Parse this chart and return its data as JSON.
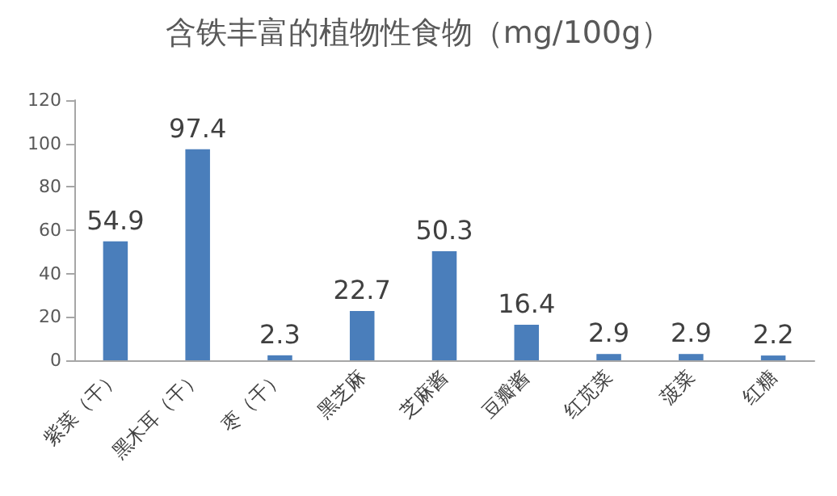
{
  "chart_data": {
    "type": "bar",
    "title": "含铁丰富的植物性食物（mg/100g）",
    "categories": [
      "紫菜（干）",
      "黑木耳（干）",
      "枣（干）",
      "黑芝麻",
      "芝麻酱",
      "豆瓣酱",
      "红苋菜",
      "菠菜",
      "红糖"
    ],
    "values": [
      54.9,
      97.4,
      2.3,
      22.7,
      50.3,
      16.4,
      2.9,
      2.9,
      2.2
    ],
    "color": "#4a7ebb",
    "ylim": [
      0,
      120
    ],
    "yticks": [
      0,
      20,
      40,
      60,
      80,
      100,
      120
    ],
    "grid": false,
    "data_labels": true
  }
}
